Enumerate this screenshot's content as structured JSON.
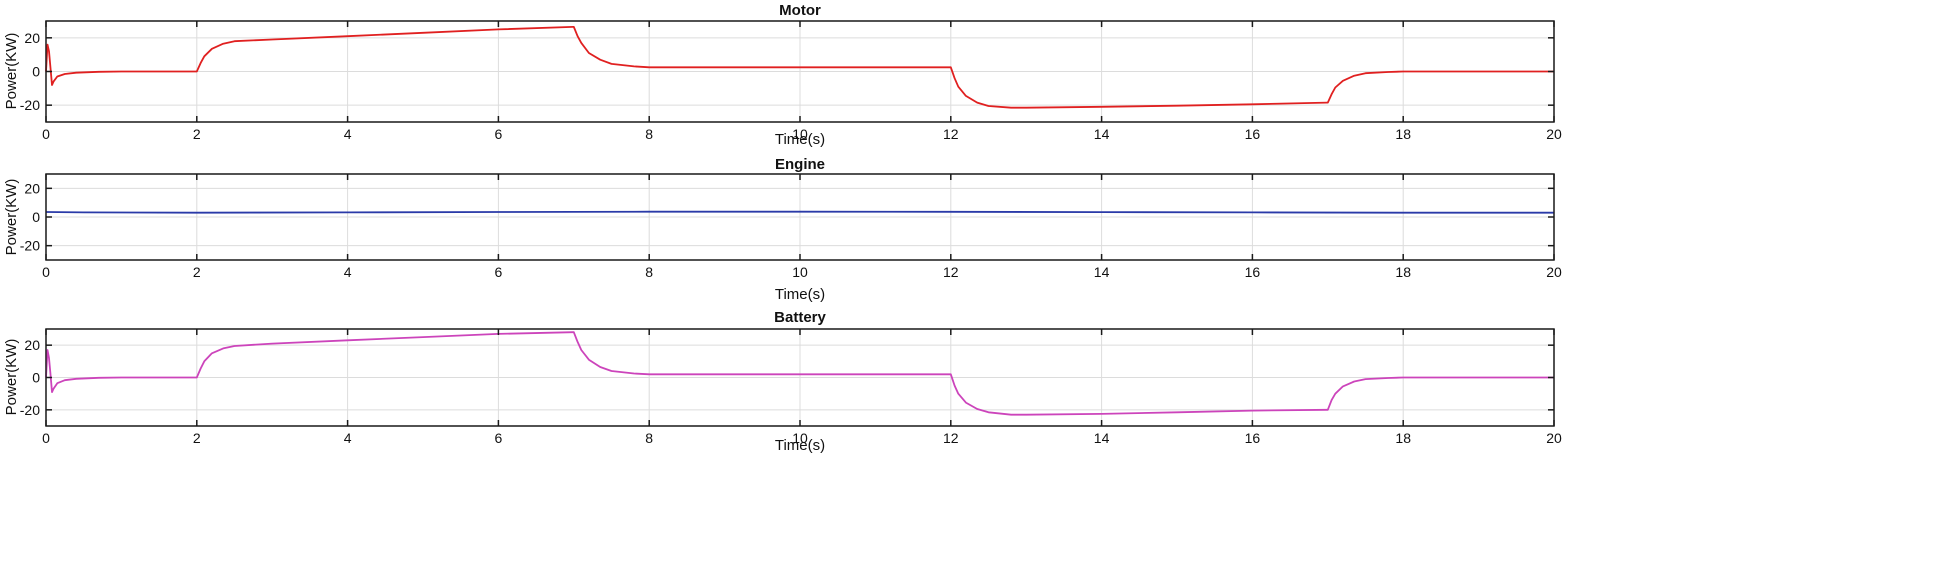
{
  "chart_data": [
    {
      "type": "line",
      "title": "Motor",
      "xlabel": "Time(s)",
      "ylabel": "Power(KW)",
      "xlim": [
        0,
        20
      ],
      "ylim": [
        -30,
        30
      ],
      "xticks": [
        "0",
        "2",
        "4",
        "6",
        "8",
        "10",
        "12",
        "14",
        "16",
        "18",
        "20"
      ],
      "yticks": [
        "20",
        "0",
        "-20"
      ],
      "grid": true,
      "series": [
        {
          "name": "Motor",
          "color": "#e02020",
          "x": [
            0,
            0.02,
            0.04,
            0.06,
            0.08,
            0.1,
            0.15,
            0.25,
            0.4,
            0.7,
            1.0,
            1.5,
            1.99,
            2.0,
            2.05,
            2.1,
            2.2,
            2.35,
            2.5,
            3.0,
            4.0,
            5.0,
            6.0,
            6.99,
            7.0,
            7.05,
            7.1,
            7.2,
            7.35,
            7.5,
            7.8,
            8.0,
            9.0,
            10.0,
            11.0,
            11.99,
            12.0,
            12.05,
            12.1,
            12.2,
            12.35,
            12.5,
            12.8,
            13.0,
            14.0,
            15.0,
            16.0,
            16.99,
            17.0,
            17.05,
            17.1,
            17.2,
            17.35,
            17.5,
            17.8,
            18.0,
            19.0,
            20.0
          ],
          "y": [
            0,
            16,
            12,
            2,
            -8,
            -6,
            -3,
            -1.5,
            -0.7,
            -0.2,
            0,
            0,
            0,
            0,
            5,
            9,
            13.5,
            16.5,
            18,
            19,
            21,
            23,
            25,
            26.5,
            26.5,
            21,
            17,
            11,
            7,
            4.5,
            3,
            2.5,
            2.5,
            2.5,
            2.5,
            2.5,
            2.5,
            -4,
            -9,
            -14.5,
            -18.5,
            -20.5,
            -21.5,
            -21.5,
            -21,
            -20.3,
            -19.5,
            -18.5,
            -18.5,
            -13.5,
            -9.5,
            -5.5,
            -2.5,
            -1,
            -0.3,
            0,
            0,
            0
          ]
        }
      ]
    },
    {
      "type": "line",
      "title": "Engine",
      "xlabel": "Time(s)",
      "ylabel": "Power(KW)",
      "xlim": [
        0,
        20
      ],
      "ylim": [
        -30,
        30
      ],
      "xticks": [
        "0",
        "2",
        "4",
        "6",
        "8",
        "10",
        "12",
        "14",
        "16",
        "18",
        "20"
      ],
      "yticks": [
        "20",
        "0",
        "-20"
      ],
      "grid": true,
      "series": [
        {
          "name": "Engine",
          "color": "#2a3aa8",
          "x": [
            0,
            0.5,
            2,
            4,
            6,
            8,
            10,
            12,
            14,
            16,
            18,
            20
          ],
          "y": [
            3.5,
            3.2,
            3.0,
            3.2,
            3.5,
            3.7,
            3.7,
            3.6,
            3.4,
            3.2,
            3.0,
            3.0
          ]
        }
      ]
    },
    {
      "type": "line",
      "title": "Battery",
      "xlabel": "Time(s)",
      "ylabel": "Power(KW)",
      "xlim": [
        0,
        20
      ],
      "ylim": [
        -30,
        30
      ],
      "xticks": [
        "0",
        "2",
        "4",
        "6",
        "8",
        "10",
        "12",
        "14",
        "16",
        "18",
        "20"
      ],
      "yticks": [
        "20",
        "0",
        "-20"
      ],
      "grid": true,
      "series": [
        {
          "name": "Battery",
          "color": "#cc44bb",
          "x": [
            0,
            0.02,
            0.04,
            0.06,
            0.08,
            0.1,
            0.15,
            0.25,
            0.4,
            0.7,
            1.0,
            1.5,
            1.99,
            2.0,
            2.05,
            2.1,
            2.2,
            2.35,
            2.5,
            3.0,
            4.0,
            5.0,
            6.0,
            6.99,
            7.0,
            7.05,
            7.1,
            7.2,
            7.35,
            7.5,
            7.8,
            8.0,
            9.0,
            10.0,
            11.0,
            11.99,
            12.0,
            12.05,
            12.1,
            12.2,
            12.35,
            12.5,
            12.8,
            13.0,
            14.0,
            15.0,
            16.0,
            16.99,
            17.0,
            17.05,
            17.1,
            17.2,
            17.35,
            17.5,
            17.8,
            18.0,
            19.0,
            20.0
          ],
          "y": [
            0,
            17,
            12,
            2,
            -9,
            -7,
            -3.5,
            -1.7,
            -0.8,
            -0.2,
            0,
            0,
            0,
            0,
            5.5,
            10,
            15,
            18,
            19.5,
            21,
            23,
            25,
            27,
            28,
            28,
            22,
            17,
            11,
            6.5,
            4,
            2.5,
            2,
            2,
            2,
            2,
            2,
            2,
            -5,
            -10,
            -15.5,
            -19.5,
            -21.5,
            -23,
            -23,
            -22.5,
            -21.5,
            -20.5,
            -20,
            -20,
            -14,
            -10,
            -5.5,
            -2.5,
            -1,
            -0.3,
            0,
            0,
            0
          ]
        }
      ]
    }
  ]
}
